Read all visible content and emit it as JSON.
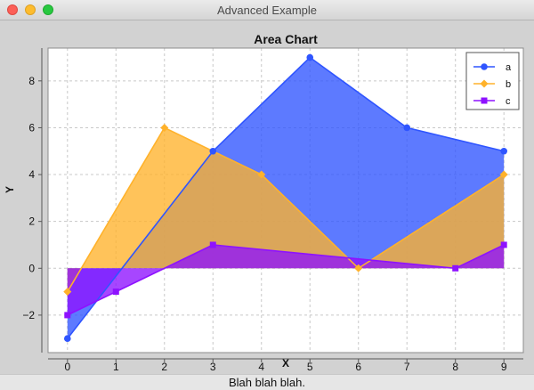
{
  "window": {
    "title": "Advanced Example"
  },
  "status": {
    "text": "Blah blah blah."
  },
  "colors": {
    "a": "#2f55ff",
    "b": "#ffb22b",
    "c": "#8e12ff"
  },
  "chart_data": {
    "type": "area",
    "title": "Area Chart",
    "xlabel": "X",
    "ylabel": "Y",
    "xlim": [
      -0.4,
      9.4
    ],
    "ylim": [
      -3.6,
      9.4
    ],
    "xticks": [
      0,
      1,
      2,
      3,
      4,
      5,
      6,
      7,
      8,
      9
    ],
    "yticks": [
      -2,
      0,
      2,
      4,
      6,
      8
    ],
    "grid": true,
    "legend_position": "top-right",
    "series": [
      {
        "name": "a",
        "marker": "circle",
        "points": [
          [
            0,
            -3
          ],
          [
            3,
            5
          ],
          [
            5,
            9
          ],
          [
            7,
            6
          ],
          [
            9,
            5
          ]
        ]
      },
      {
        "name": "b",
        "marker": "diamond",
        "points": [
          [
            0,
            -1
          ],
          [
            2,
            6
          ],
          [
            4,
            4
          ],
          [
            6,
            0
          ],
          [
            9,
            4
          ]
        ]
      },
      {
        "name": "c",
        "marker": "square",
        "points": [
          [
            0,
            -2
          ],
          [
            1,
            -1
          ],
          [
            3,
            1
          ],
          [
            8,
            0
          ],
          [
            9,
            1
          ]
        ]
      }
    ]
  }
}
